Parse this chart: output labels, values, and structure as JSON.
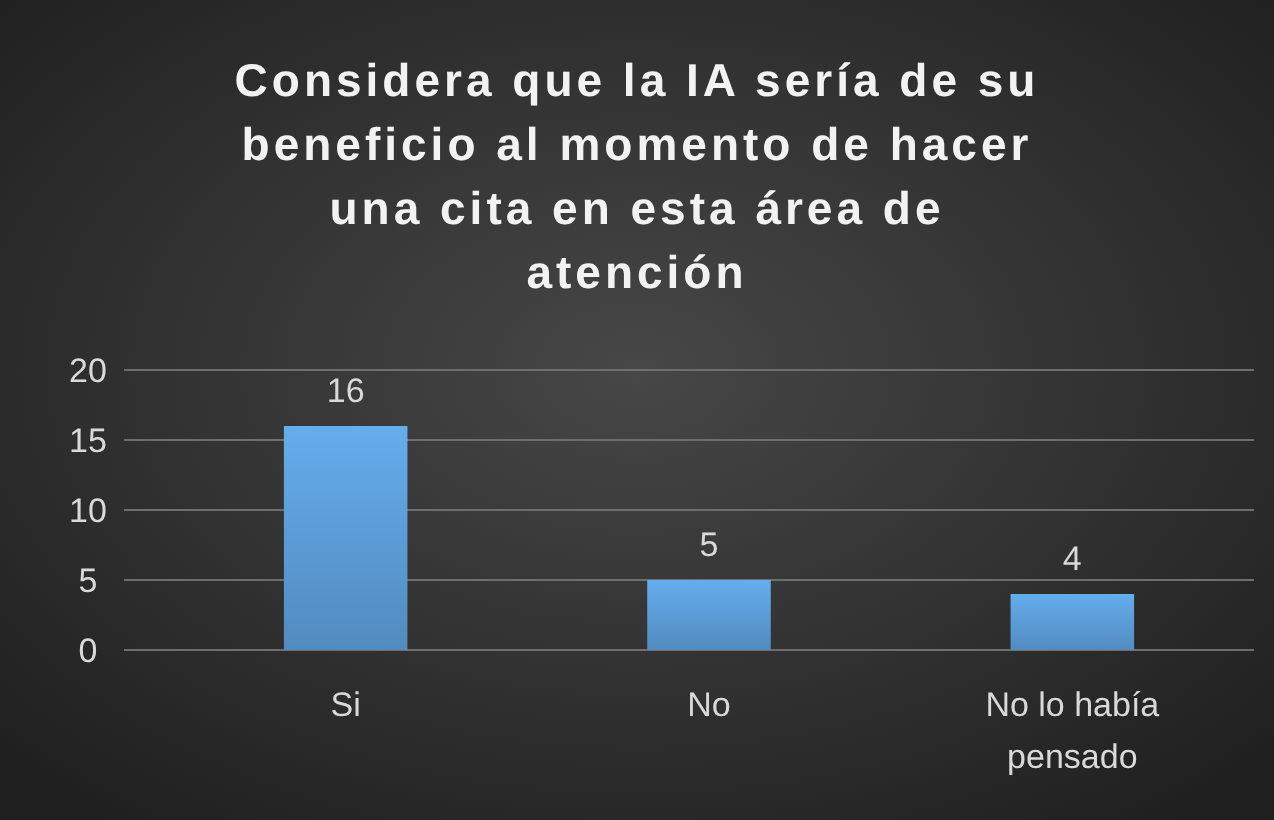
{
  "chart_data": {
    "type": "bar",
    "title": "Considera que la IA sería de su beneficio al momento de hacer una cita en esta área de atención",
    "categories": [
      "Si",
      "No",
      "No lo había pensado"
    ],
    "values": [
      16,
      5,
      4
    ],
    "color": "#5b9bd5",
    "ylim": [
      0,
      20
    ],
    "yticks": [
      0,
      5,
      10,
      15,
      20
    ],
    "grid": "y",
    "data_labels": true
  }
}
